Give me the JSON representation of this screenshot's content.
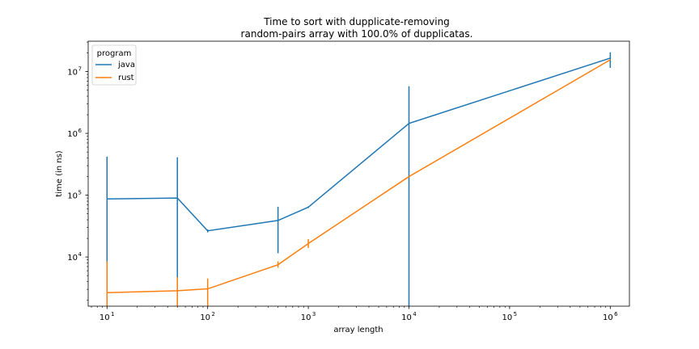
{
  "chart_data": {
    "type": "line",
    "title_line1": "Time to sort with dupplicate-removing",
    "title_line2": "random-pairs array with 100.0% of dupplicatas.",
    "xlabel": "array length",
    "ylabel": "time (in ns)",
    "xscale": "log",
    "yscale": "log",
    "xlim": [
      6.5,
      1550000
    ],
    "ylim": [
      1600,
      31000000
    ],
    "x_ticks": [
      {
        "base": "10",
        "exp": "1",
        "value": 10
      },
      {
        "base": "10",
        "exp": "2",
        "value": 100
      },
      {
        "base": "10",
        "exp": "3",
        "value": 1000
      },
      {
        "base": "10",
        "exp": "4",
        "value": 10000
      },
      {
        "base": "10",
        "exp": "5",
        "value": 100000
      },
      {
        "base": "10",
        "exp": "6",
        "value": 1000000
      }
    ],
    "y_ticks": [
      {
        "base": "10",
        "exp": "4",
        "value": 10000
      },
      {
        "base": "10",
        "exp": "5",
        "value": 100000
      },
      {
        "base": "10",
        "exp": "6",
        "value": 1000000
      },
      {
        "base": "10",
        "exp": "7",
        "value": 10000000
      }
    ],
    "grid": false,
    "legend": {
      "title": "program",
      "placement": "top-left"
    },
    "series": [
      {
        "name": "java",
        "color": "#1f77b4",
        "points": [
          {
            "x": 10,
            "y": 87000,
            "err_low": 1600,
            "err_high": 420000
          },
          {
            "x": 50,
            "y": 90000,
            "err_low": 1600,
            "err_high": 410000
          },
          {
            "x": 100,
            "y": 26500,
            "err_low": 25000,
            "err_high": 28000
          },
          {
            "x": 500,
            "y": 39000,
            "err_low": 11500,
            "err_high": 65000
          },
          {
            "x": 1000,
            "y": 64000,
            "err_low": 62000,
            "err_high": 66000
          },
          {
            "x": 10000,
            "y": 1450000,
            "err_low": 1600,
            "err_high": 5800000
          },
          {
            "x": 1000000,
            "y": 16500000,
            "err_low": 11500000,
            "err_high": 20500000
          }
        ]
      },
      {
        "name": "rust",
        "color": "#ff7f0e",
        "points": [
          {
            "x": 10,
            "y": 2650,
            "err_low": 1600,
            "err_high": 8500
          },
          {
            "x": 50,
            "y": 2850,
            "err_low": 1600,
            "err_high": 4700
          },
          {
            "x": 100,
            "y": 3050,
            "err_low": 1600,
            "err_high": 4500
          },
          {
            "x": 500,
            "y": 7500,
            "err_low": 6700,
            "err_high": 8500
          },
          {
            "x": 1000,
            "y": 16500,
            "err_low": 14000,
            "err_high": 19500
          },
          {
            "x": 10000,
            "y": 200000,
            "err_low": 199000,
            "err_high": 201000
          },
          {
            "x": 1000000,
            "y": 15500000,
            "err_low": 15300000,
            "err_high": 15700000
          }
        ]
      }
    ]
  }
}
